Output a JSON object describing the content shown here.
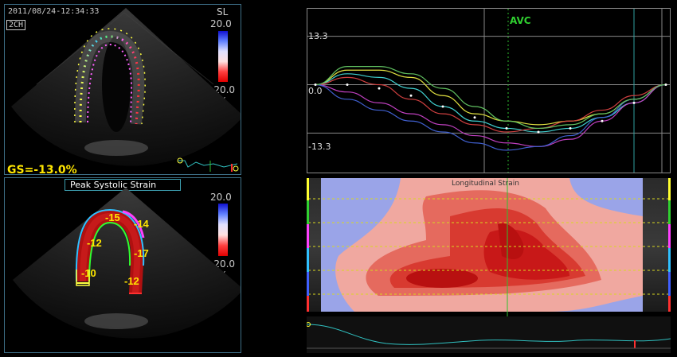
{
  "top_left": {
    "timestamp": "2011/08/24-12:34:33",
    "view": "2CH",
    "mode": "SL",
    "scale_max": "20.0",
    "scale_min": "-20.0",
    "scale_unit": "%",
    "gs_label": "GS=-13.0%"
  },
  "bottom_left": {
    "title": "Peak Systolic Strain",
    "scale_max": "20.0",
    "scale_min": "-20.0",
    "scale_unit": "%",
    "segments": [
      {
        "label": "-15"
      },
      {
        "label": "-14"
      },
      {
        "label": "-12"
      },
      {
        "label": "-17"
      },
      {
        "label": "-10"
      },
      {
        "label": "-12"
      }
    ]
  },
  "strain_curves": {
    "event_label": "AVC",
    "ytick_top": "13.3",
    "ytick_zero": "0.0",
    "ytick_bottom": "-13.3",
    "chart_data": {
      "type": "line",
      "ylim": [
        -20,
        20
      ],
      "yticks": [
        13.3,
        0.0,
        -13.3
      ],
      "series": [
        {
          "color": "#e0e040",
          "values": [
            0,
            4,
            4,
            2,
            -3,
            -8,
            -10,
            -11,
            -10,
            -8,
            -4,
            0
          ]
        },
        {
          "color": "#40d0d0",
          "values": [
            0,
            3,
            2,
            -1,
            -6,
            -10,
            -12,
            -13,
            -12,
            -9,
            -5,
            0
          ]
        },
        {
          "color": "#d04040",
          "values": [
            0,
            2,
            0,
            -4,
            -8,
            -11,
            -13,
            -12,
            -10,
            -7,
            -3,
            0
          ]
        },
        {
          "color": "#c040c0",
          "values": [
            0,
            -2,
            -5,
            -8,
            -11,
            -14,
            -16,
            -17,
            -15,
            -10,
            -5,
            0
          ]
        },
        {
          "color": "#4060d0",
          "values": [
            0,
            -4,
            -7,
            -10,
            -13,
            -16,
            -18,
            -17,
            -14,
            -9,
            -4,
            0
          ]
        },
        {
          "color": "#60c060",
          "values": [
            0,
            5,
            5,
            3,
            -1,
            -6,
            -10,
            -12,
            -11,
            -8,
            -4,
            0
          ]
        },
        {
          "color": "#ffffff",
          "values": [
            0,
            0,
            -1,
            -3,
            -6,
            -9,
            -12,
            -13,
            -12,
            -10,
            -5,
            0
          ],
          "dotted": true
        }
      ]
    }
  },
  "strain_map": {
    "title": "Longitudinal Strain"
  }
}
